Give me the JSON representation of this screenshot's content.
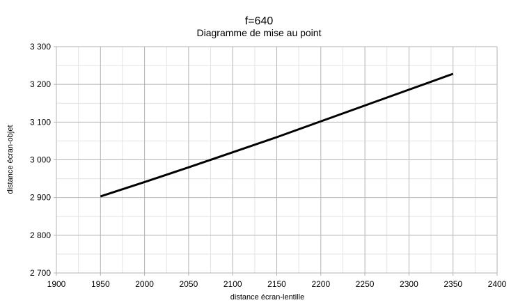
{
  "chart_data": {
    "type": "line",
    "title": "f=640",
    "subtitle": "Diagramme de mise au point",
    "xlabel": "distance écran-lentille",
    "ylabel": "distance écran-objet",
    "xlim": [
      1900,
      2400
    ],
    "ylim": [
      2700,
      3300
    ],
    "x_ticks": [
      1900,
      1950,
      2000,
      2050,
      2100,
      2150,
      2200,
      2250,
      2300,
      2350,
      2400
    ],
    "x_tick_labels": [
      "1900",
      "1950",
      "2000",
      "2050",
      "2100",
      "2150",
      "2200",
      "2250",
      "2300",
      "2350",
      "2400"
    ],
    "y_ticks": [
      2700,
      2800,
      2900,
      3000,
      3100,
      3200,
      3300
    ],
    "y_tick_labels": [
      "2 700",
      "2 800",
      "2 900",
      "3 000",
      "3 100",
      "3 200",
      "3 300"
    ],
    "grid": true,
    "line_color": "#000000",
    "series": [
      {
        "x": [
          1950,
          2000,
          2050,
          2100,
          2150,
          2200,
          2250,
          2300,
          2350
        ],
        "values": [
          2903,
          2941,
          2980,
          3020,
          3060,
          3102,
          3144,
          3186,
          3228
        ]
      }
    ]
  }
}
